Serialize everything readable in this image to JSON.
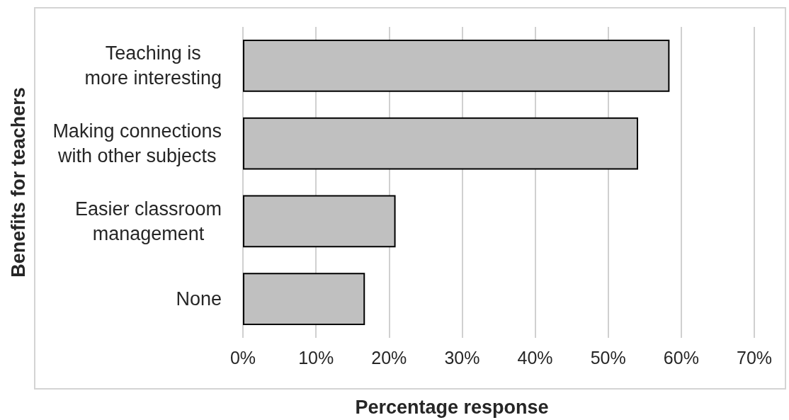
{
  "chart_data": {
    "type": "bar",
    "orientation": "horizontal",
    "xlabel": "Percentage response",
    "ylabel": "Benefits for teachers",
    "categories": [
      "Teaching is more interesting",
      "Making connections with other subjects",
      "Easier classroom management",
      "None"
    ],
    "values": [
      58.4,
      54.1,
      20.9,
      16.7
    ],
    "color": "#c0c0c0",
    "xlim": [
      0,
      70
    ],
    "xticks": [
      {
        "value": 0,
        "label": "0%"
      },
      {
        "value": 10,
        "label": "10%"
      },
      {
        "value": 20,
        "label": "20%"
      },
      {
        "value": 30,
        "label": "30%"
      },
      {
        "value": 40,
        "label": "40%"
      },
      {
        "value": 50,
        "label": "50%"
      },
      {
        "value": 60,
        "label": "60%"
      },
      {
        "value": 70,
        "label": "70%"
      }
    ],
    "grid": "x"
  }
}
